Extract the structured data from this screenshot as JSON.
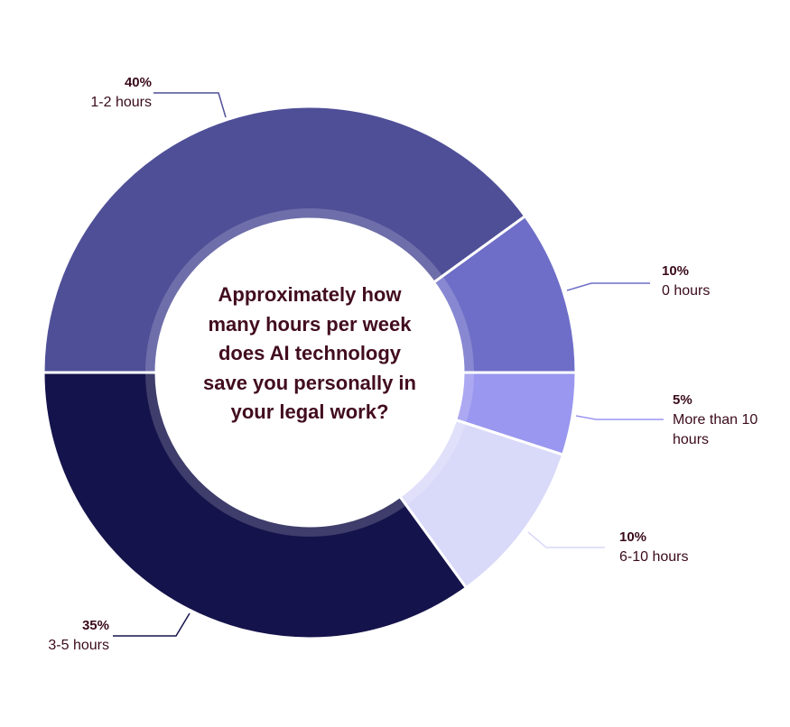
{
  "chart_data": {
    "type": "donut",
    "title": "Approximately how many hours per week does AI technology save you personally in your legal work?",
    "categories": [
      "1-2 hours",
      "0 hours",
      "More than 10 hours",
      "6-10 hours",
      "3-5 hours"
    ],
    "values": [
      40,
      10,
      5,
      10,
      35
    ],
    "value_labels": [
      "40%",
      "10%",
      "5%",
      "10%",
      "35%"
    ],
    "colors": [
      "#4f4f98",
      "#6e6ec8",
      "#9a97f0",
      "#d9d9f9",
      "#15134b"
    ]
  }
}
